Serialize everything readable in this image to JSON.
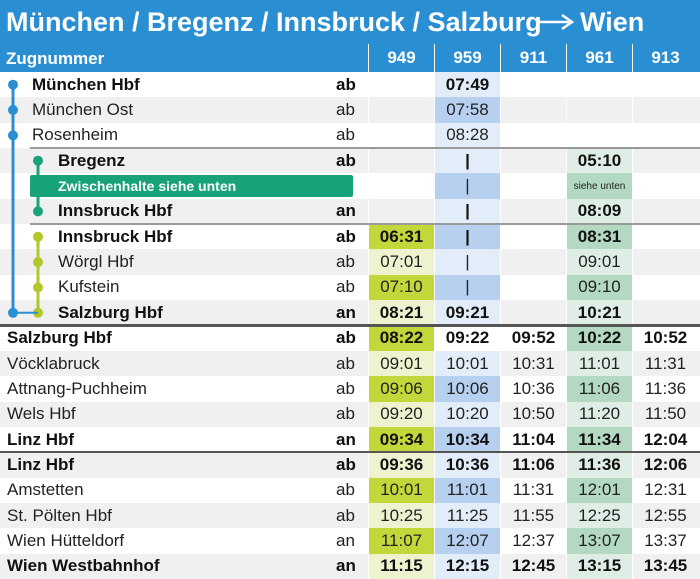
{
  "title": "München / Bregenz / Innsbruck / Salzburg",
  "title_destination": "Wien",
  "header": {
    "label": "Zugnummer",
    "trains": [
      "949",
      "959",
      "911",
      "961",
      "913"
    ]
  },
  "rows": [
    {
      "station": "München Hbf",
      "type": "ab",
      "times": [
        null,
        "07:49",
        null,
        null,
        null
      ]
    },
    {
      "station": "München Ost",
      "type": "ab",
      "times": [
        null,
        "07:58",
        null,
        null,
        null
      ]
    },
    {
      "station": "Rosenheim",
      "type": "ab",
      "times": [
        null,
        "08:28",
        null,
        null,
        null
      ]
    },
    {
      "station": "Bregenz",
      "type": "ab",
      "times": [
        null,
        "|",
        null,
        "05:10",
        null
      ]
    },
    {
      "station": "Zwischenhalte siehe unten",
      "type": null,
      "times": [
        null,
        "|",
        null,
        "siehe unten",
        null
      ]
    },
    {
      "station": "Innsbruck Hbf",
      "type": "an",
      "times": [
        null,
        "|",
        null,
        "08:09",
        null
      ]
    },
    {
      "station": "Innsbruck Hbf",
      "type": "ab",
      "times": [
        "06:31",
        "|",
        null,
        "08:31",
        null
      ]
    },
    {
      "station": "Wörgl Hbf",
      "type": "ab",
      "times": [
        "07:01",
        "|",
        null,
        "09:01",
        null
      ]
    },
    {
      "station": "Kufstein",
      "type": "ab",
      "times": [
        "07:10",
        "|",
        null,
        "09:10",
        null
      ]
    },
    {
      "station": "Salzburg Hbf",
      "type": "an",
      "times": [
        "08:21",
        "09:21",
        null,
        "10:21",
        null
      ]
    },
    {
      "station": "Salzburg Hbf",
      "type": "ab",
      "times": [
        "08:22",
        "09:22",
        "09:52",
        "10:22",
        "10:52"
      ]
    },
    {
      "station": "Vöcklabruck",
      "type": "ab",
      "times": [
        "09:01",
        "10:01",
        "10:31",
        "11:01",
        "11:31"
      ]
    },
    {
      "station": "Attnang-Puchheim",
      "type": "ab",
      "times": [
        "09:06",
        "10:06",
        "10:36",
        "11:06",
        "11:36"
      ]
    },
    {
      "station": "Wels Hbf",
      "type": "ab",
      "times": [
        "09:20",
        "10:20",
        "10:50",
        "11:20",
        "11:50"
      ]
    },
    {
      "station": "Linz Hbf",
      "type": "an",
      "times": [
        "09:34",
        "10:34",
        "11:04",
        "11:34",
        "12:04"
      ]
    },
    {
      "station": "Linz Hbf",
      "type": "ab",
      "times": [
        "09:36",
        "10:36",
        "11:06",
        "11:36",
        "12:06"
      ]
    },
    {
      "station": "Amstetten",
      "type": "ab",
      "times": [
        "10:01",
        "11:01",
        "11:31",
        "12:01",
        "12:31"
      ]
    },
    {
      "station": "St. Pölten Hbf",
      "type": "ab",
      "times": [
        "10:25",
        "11:25",
        "11:55",
        "12:25",
        "12:55"
      ]
    },
    {
      "station": "Wien Hütteldorf",
      "type": "an",
      "times": [
        "11:07",
        "12:07",
        "12:37",
        "13:07",
        "13:37"
      ]
    },
    {
      "station": "Wien Westbahnhof",
      "type": "an",
      "times": [
        "11:15",
        "12:15",
        "12:45",
        "13:15",
        "13:45"
      ]
    }
  ]
}
